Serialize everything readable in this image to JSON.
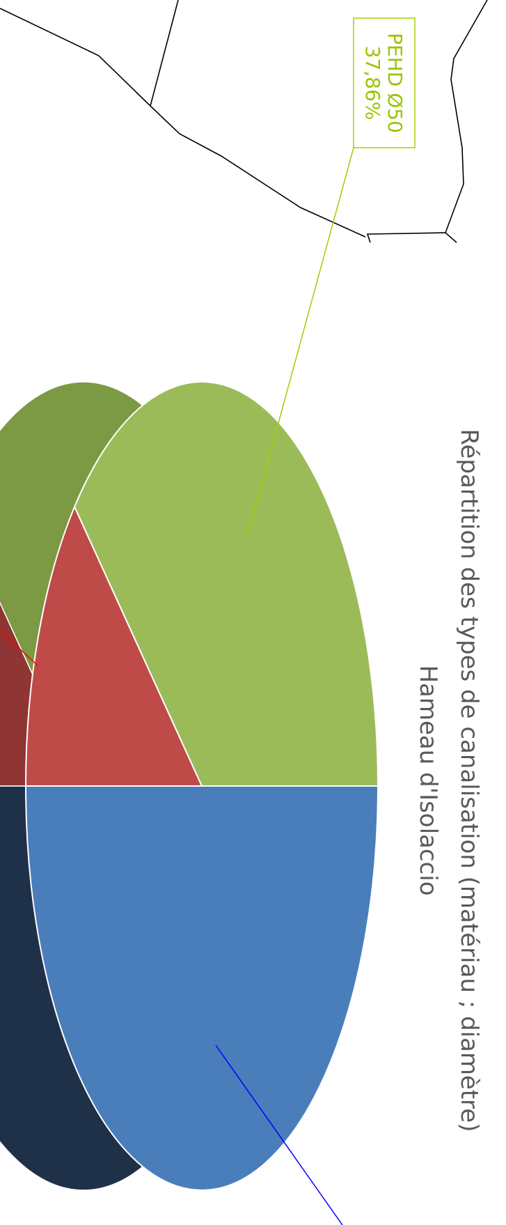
{
  "chart_data": {
    "type": "pie",
    "title_line1": "Répartition des types de canalisation (matériau ; diamètre)",
    "title_line2": "Hameau d'Isolaccio",
    "series": [
      {
        "label": "",
        "value": 50.0,
        "color": "#4a7ebb",
        "dark_color": "#1f3049",
        "leader_color": "#0000ff"
      },
      {
        "label": "",
        "value": 12.14,
        "color": "#be4b48",
        "dark_color": "#8f3533",
        "leader_color": "#ff0000"
      },
      {
        "label": "PEHD Ø50",
        "percent_label": "37,86%",
        "value": 37.86,
        "color": "#9bbb59",
        "dark_color": "#7b9a43",
        "leader_color": "#a0d000"
      }
    ]
  }
}
